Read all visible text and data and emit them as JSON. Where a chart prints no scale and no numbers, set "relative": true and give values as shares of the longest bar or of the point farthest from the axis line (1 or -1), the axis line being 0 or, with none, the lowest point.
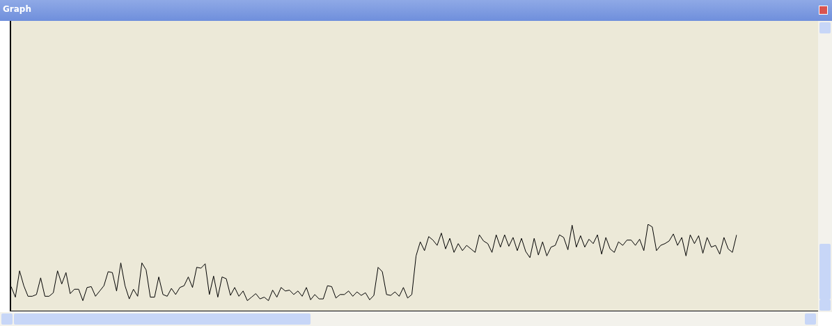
{
  "chart_data": {
    "type": "line",
    "title": "Graph",
    "relative": true,
    "grid": false,
    "legend": false,
    "marker": "none",
    "categories": [
      null,
      null,
      null,
      null,
      null,
      null,
      null,
      null,
      null,
      null,
      null,
      null,
      null,
      null,
      null,
      null,
      null,
      null,
      null,
      null,
      null,
      null,
      null,
      null,
      null,
      null,
      null,
      null,
      null,
      null,
      null,
      null,
      null,
      null,
      null,
      null,
      null,
      null,
      null,
      null,
      null,
      null,
      null,
      null,
      null,
      null,
      null,
      null,
      null,
      null,
      null,
      null,
      null,
      null,
      null,
      null,
      null,
      null,
      null,
      null,
      null,
      null,
      null,
      null,
      null,
      null,
      null,
      null,
      null,
      null,
      null,
      null,
      null,
      null,
      null,
      null,
      null,
      null,
      null,
      null,
      null,
      null,
      null,
      null,
      null,
      null,
      null,
      null,
      null,
      null,
      null,
      null,
      null,
      null,
      null,
      null,
      null,
      null,
      null,
      null,
      null,
      null,
      null,
      null,
      null,
      null,
      null,
      null,
      null,
      null,
      null,
      null,
      null,
      null,
      null,
      null,
      null,
      null,
      null,
      null,
      null,
      null,
      null,
      null,
      null,
      null,
      null,
      null,
      null,
      null,
      null,
      null,
      null,
      null,
      null,
      null,
      null,
      null,
      null,
      null,
      null,
      null,
      null,
      null,
      null,
      null,
      null,
      null,
      null,
      null,
      null,
      null,
      null,
      null,
      null,
      null,
      null,
      null,
      null,
      null,
      null,
      null,
      null,
      null,
      null,
      null,
      null,
      null,
      null,
      null,
      null,
      null,
      null
    ],
    "series": [
      {
        "color": "#000000",
        "values": [
          0.29,
          0.17,
          0.47,
          0.3,
          0.18,
          0.18,
          0.2,
          0.39,
          0.18,
          0.18,
          0.22,
          0.47,
          0.32,
          0.45,
          0.21,
          0.26,
          0.26,
          0.13,
          0.28,
          0.29,
          0.18,
          0.24,
          0.3,
          0.46,
          0.45,
          0.24,
          0.56,
          0.3,
          0.15,
          0.26,
          0.18,
          0.56,
          0.48,
          0.17,
          0.17,
          0.4,
          0.2,
          0.18,
          0.27,
          0.2,
          0.28,
          0.3,
          0.4,
          0.28,
          0.51,
          0.5,
          0.55,
          0.2,
          0.41,
          0.17,
          0.4,
          0.38,
          0.19,
          0.28,
          0.18,
          0.24,
          0.13,
          0.17,
          0.21,
          0.15,
          0.17,
          0.13,
          0.25,
          0.17,
          0.28,
          0.24,
          0.25,
          0.2,
          0.24,
          0.18,
          0.28,
          0.14,
          0.2,
          0.15,
          0.15,
          0.3,
          0.29,
          0.16,
          0.2,
          0.2,
          0.24,
          0.18,
          0.23,
          0.19,
          0.22,
          0.14,
          0.19,
          0.51,
          0.46,
          0.2,
          0.19,
          0.23,
          0.18,
          0.28,
          0.16,
          0.2,
          0.64,
          0.8,
          0.7,
          0.86,
          0.82,
          0.76,
          0.9,
          0.72,
          0.84,
          0.68,
          0.78,
          0.7,
          0.76,
          0.72,
          0.68,
          0.88,
          0.81,
          0.78,
          0.68,
          0.88,
          0.74,
          0.88,
          0.75,
          0.85,
          0.7,
          0.84,
          0.69,
          0.62,
          0.84,
          0.65,
          0.8,
          0.64,
          0.74,
          0.76,
          0.88,
          0.85,
          0.71,
          0.99,
          0.74,
          0.87,
          0.74,
          0.83,
          0.78,
          0.88,
          0.66,
          0.85,
          0.72,
          0.68,
          0.8,
          0.76,
          0.82,
          0.82,
          0.76,
          0.83,
          0.7,
          1,
          0.97,
          0.7,
          0.76,
          0.78,
          0.81,
          0.89,
          0.76,
          0.85,
          0.64,
          0.88,
          0.78,
          0.87,
          0.67,
          0.85,
          0.74,
          0.76,
          0.66,
          0.85,
          0.72,
          0.68,
          0.88
        ]
      }
    ]
  }
}
